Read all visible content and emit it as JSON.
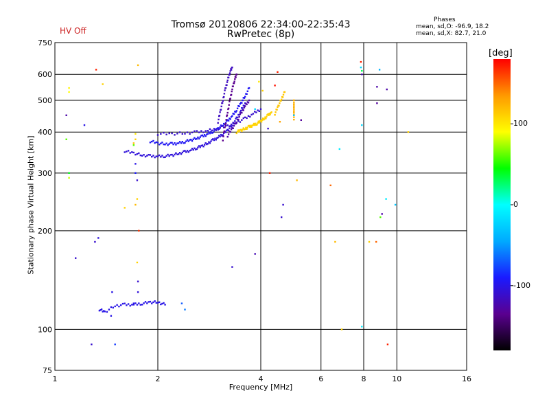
{
  "hv_status": "HV Off",
  "stats": {
    "header": "Phases",
    "o_line": "mean, sd,O: -96.9, 18.2",
    "x_line": "mean, sd,X:  82.7, 21.0"
  },
  "colorbar": {
    "label": "[deg]",
    "range": [
      -180,
      180
    ],
    "ticks": [
      {
        "value": 100,
        "label": "100"
      },
      {
        "value": 0,
        "label": "0"
      },
      {
        "value": -100,
        "label": "-100"
      }
    ],
    "colors": [
      "#000000",
      "#5a0090",
      "#1a1aff",
      "#00aaff",
      "#00ffff",
      "#00ff00",
      "#ffff00",
      "#ff9900",
      "#ff0000"
    ]
  },
  "chart_data": {
    "type": "scatter",
    "title": "Tromsø 20120806 22:34:00-22:35:43",
    "subtitle": "RwPretec (8p)",
    "xlabel": "Frequency [MHz]",
    "ylabel": "Stationary phase Virtual Height [km]",
    "x_scale": "log",
    "y_scale": "log",
    "xlim": [
      1,
      16
    ],
    "ylim": [
      75,
      750
    ],
    "grid": true,
    "xticks": [
      {
        "value": 1,
        "label": "1"
      },
      {
        "value": 2,
        "label": "2"
      },
      {
        "value": 4,
        "label": "4"
      },
      {
        "value": 6,
        "label": "6"
      },
      {
        "value": 8,
        "label": "8"
      },
      {
        "value": 10,
        "label": "10"
      },
      {
        "value": 16,
        "label": "16"
      }
    ],
    "yticks": [
      {
        "value": 75,
        "label": "75"
      },
      {
        "value": 100,
        "label": "100"
      },
      {
        "value": 200,
        "label": "200"
      },
      {
        "value": 300,
        "label": "300"
      },
      {
        "value": 400,
        "label": "400"
      },
      {
        "value": 500,
        "label": "500"
      },
      {
        "value": 600,
        "label": "600"
      },
      {
        "value": 750,
        "label": "750"
      }
    ],
    "traces": [
      {
        "phase": -105,
        "points": [
          [
            1.6,
            350
          ],
          [
            1.7,
            345
          ],
          [
            1.8,
            340
          ],
          [
            1.9,
            338
          ],
          [
            2.0,
            337
          ],
          [
            2.1,
            338
          ],
          [
            2.2,
            340
          ],
          [
            2.3,
            344
          ],
          [
            2.4,
            348
          ],
          [
            2.5,
            352
          ],
          [
            2.6,
            358
          ],
          [
            2.7,
            363
          ],
          [
            2.8,
            370
          ],
          [
            2.9,
            378
          ],
          [
            3.0,
            385
          ],
          [
            3.1,
            395
          ],
          [
            3.2,
            405
          ],
          [
            3.3,
            420
          ],
          [
            3.4,
            440
          ],
          [
            3.5,
            465
          ],
          [
            3.6,
            490
          ]
        ]
      },
      {
        "phase": -95,
        "points": [
          [
            1.9,
            375
          ],
          [
            2.0,
            370
          ],
          [
            2.1,
            368
          ],
          [
            2.2,
            368
          ],
          [
            2.3,
            370
          ],
          [
            2.4,
            374
          ],
          [
            2.5,
            378
          ],
          [
            2.6,
            383
          ],
          [
            2.7,
            388
          ],
          [
            2.8,
            395
          ],
          [
            2.9,
            402
          ],
          [
            3.0,
            410
          ],
          [
            3.1,
            420
          ],
          [
            3.2,
            432
          ],
          [
            3.3,
            448
          ],
          [
            3.4,
            468
          ],
          [
            3.5,
            490
          ],
          [
            3.6,
            515
          ],
          [
            3.7,
            545
          ]
        ]
      },
      {
        "phase": -110,
        "points": [
          [
            2.0,
            395
          ],
          [
            2.2,
            395
          ],
          [
            2.4,
            397
          ],
          [
            2.6,
            400
          ],
          [
            2.8,
            404
          ],
          [
            3.0,
            410
          ],
          [
            3.2,
            418
          ],
          [
            3.4,
            428
          ],
          [
            3.6,
            440
          ],
          [
            3.8,
            455
          ],
          [
            4.0,
            470
          ]
        ]
      },
      {
        "phase": -115,
        "points": [
          [
            3.0,
            430
          ],
          [
            3.05,
            465
          ],
          [
            3.1,
            500
          ],
          [
            3.15,
            540
          ],
          [
            3.2,
            575
          ],
          [
            3.25,
            610
          ],
          [
            3.3,
            630
          ]
        ]
      },
      {
        "phase": -135,
        "points": [
          [
            3.1,
            380
          ],
          [
            3.15,
            420
          ],
          [
            3.2,
            460
          ],
          [
            3.25,
            500
          ],
          [
            3.3,
            540
          ],
          [
            3.35,
            575
          ],
          [
            3.4,
            600
          ]
        ]
      },
      {
        "phase": -125,
        "points": [
          [
            3.2,
            390
          ],
          [
            3.3,
            410
          ],
          [
            3.4,
            430
          ],
          [
            3.5,
            455
          ],
          [
            3.6,
            480
          ],
          [
            3.7,
            500
          ]
        ]
      },
      {
        "phase": 110,
        "points": [
          [
            3.4,
            400
          ],
          [
            3.5,
            405
          ],
          [
            3.6,
            410
          ],
          [
            3.7,
            415
          ],
          [
            3.8,
            420
          ],
          [
            3.9,
            425
          ],
          [
            4.0,
            432
          ],
          [
            4.1,
            440
          ],
          [
            4.2,
            450
          ],
          [
            4.3,
            460
          ]
        ]
      },
      {
        "phase": 115,
        "points": [
          [
            4.4,
            455
          ],
          [
            4.5,
            480
          ],
          [
            4.6,
            505
          ],
          [
            4.7,
            530
          ]
        ]
      },
      {
        "phase": 125,
        "points": [
          [
            5.0,
            440
          ],
          [
            5.0,
            460
          ],
          [
            5.0,
            480
          ],
          [
            5.0,
            500
          ]
        ]
      },
      {
        "phase": -100,
        "points": [
          [
            1.35,
            115
          ],
          [
            1.4,
            113
          ],
          [
            1.5,
            118
          ],
          [
            1.6,
            119
          ],
          [
            1.7,
            119
          ],
          [
            1.8,
            120
          ],
          [
            1.9,
            121
          ],
          [
            2.0,
            121
          ],
          [
            2.1,
            119
          ]
        ]
      }
    ],
    "scatter_points": [
      [
        1.08,
        450,
        -125
      ],
      [
        1.1,
        530,
        90
      ],
      [
        1.1,
        545,
        95
      ],
      [
        1.08,
        380,
        60
      ],
      [
        1.1,
        300,
        40
      ],
      [
        1.1,
        290,
        80
      ],
      [
        1.22,
        420,
        -100
      ],
      [
        1.32,
        620,
        170
      ],
      [
        1.38,
        560,
        110
      ],
      [
        1.15,
        165,
        -110
      ],
      [
        1.28,
        90,
        -110
      ],
      [
        1.31,
        185,
        -110
      ],
      [
        1.34,
        190,
        -105
      ],
      [
        1.47,
        130,
        -100
      ],
      [
        1.46,
        110,
        -100
      ],
      [
        1.5,
        90,
        -80
      ],
      [
        1.6,
        235,
        110
      ],
      [
        1.72,
        320,
        -100
      ],
      [
        1.72,
        300,
        -90
      ],
      [
        1.74,
        285,
        -110
      ],
      [
        1.72,
        240,
        120
      ],
      [
        1.74,
        250,
        110
      ],
      [
        1.76,
        200,
        165
      ],
      [
        1.74,
        160,
        110
      ],
      [
        1.75,
        640,
        120
      ],
      [
        1.72,
        395,
        100
      ],
      [
        1.72,
        380,
        110
      ],
      [
        1.7,
        370,
        120
      ],
      [
        1.7,
        365,
        60
      ],
      [
        1.75,
        140,
        -110
      ],
      [
        1.75,
        130,
        -105
      ],
      [
        1.7,
        120,
        -100
      ],
      [
        2.4,
        115,
        -60
      ],
      [
        2.35,
        120,
        -70
      ],
      [
        3.3,
        155,
        -110
      ],
      [
        3.85,
        170,
        -120
      ],
      [
        3.85,
        470,
        -20
      ],
      [
        3.95,
        570,
        100
      ],
      [
        4.05,
        535,
        110
      ],
      [
        4.2,
        410,
        -110
      ],
      [
        4.25,
        300,
        170
      ],
      [
        4.48,
        610,
        170
      ],
      [
        4.4,
        555,
        175
      ],
      [
        4.55,
        430,
        130
      ],
      [
        4.6,
        220,
        -110
      ],
      [
        5.1,
        285,
        120
      ],
      [
        5.25,
        435,
        -130
      ],
      [
        5.0,
        450,
        -30
      ],
      [
        6.4,
        275,
        150
      ],
      [
        6.6,
        185,
        120
      ],
      [
        6.9,
        100,
        110
      ],
      [
        6.8,
        355,
        -10
      ],
      [
        7.85,
        655,
        170
      ],
      [
        7.85,
        630,
        -20
      ],
      [
        7.9,
        615,
        30
      ],
      [
        7.9,
        600,
        -120
      ],
      [
        7.9,
        420,
        -20
      ],
      [
        7.9,
        102,
        -10
      ],
      [
        8.3,
        185,
        110
      ],
      [
        8.7,
        185,
        150
      ],
      [
        8.75,
        490,
        -130
      ],
      [
        8.75,
        550,
        -125
      ],
      [
        8.9,
        620,
        -40
      ],
      [
        8.95,
        220,
        60
      ],
      [
        9.05,
        225,
        -125
      ],
      [
        9.3,
        250,
        -10
      ],
      [
        9.35,
        540,
        -125
      ],
      [
        9.4,
        90,
        170
      ],
      [
        9.9,
        240,
        -30
      ],
      [
        10.8,
        400,
        110
      ],
      [
        4.65,
        240,
        -110
      ]
    ]
  }
}
